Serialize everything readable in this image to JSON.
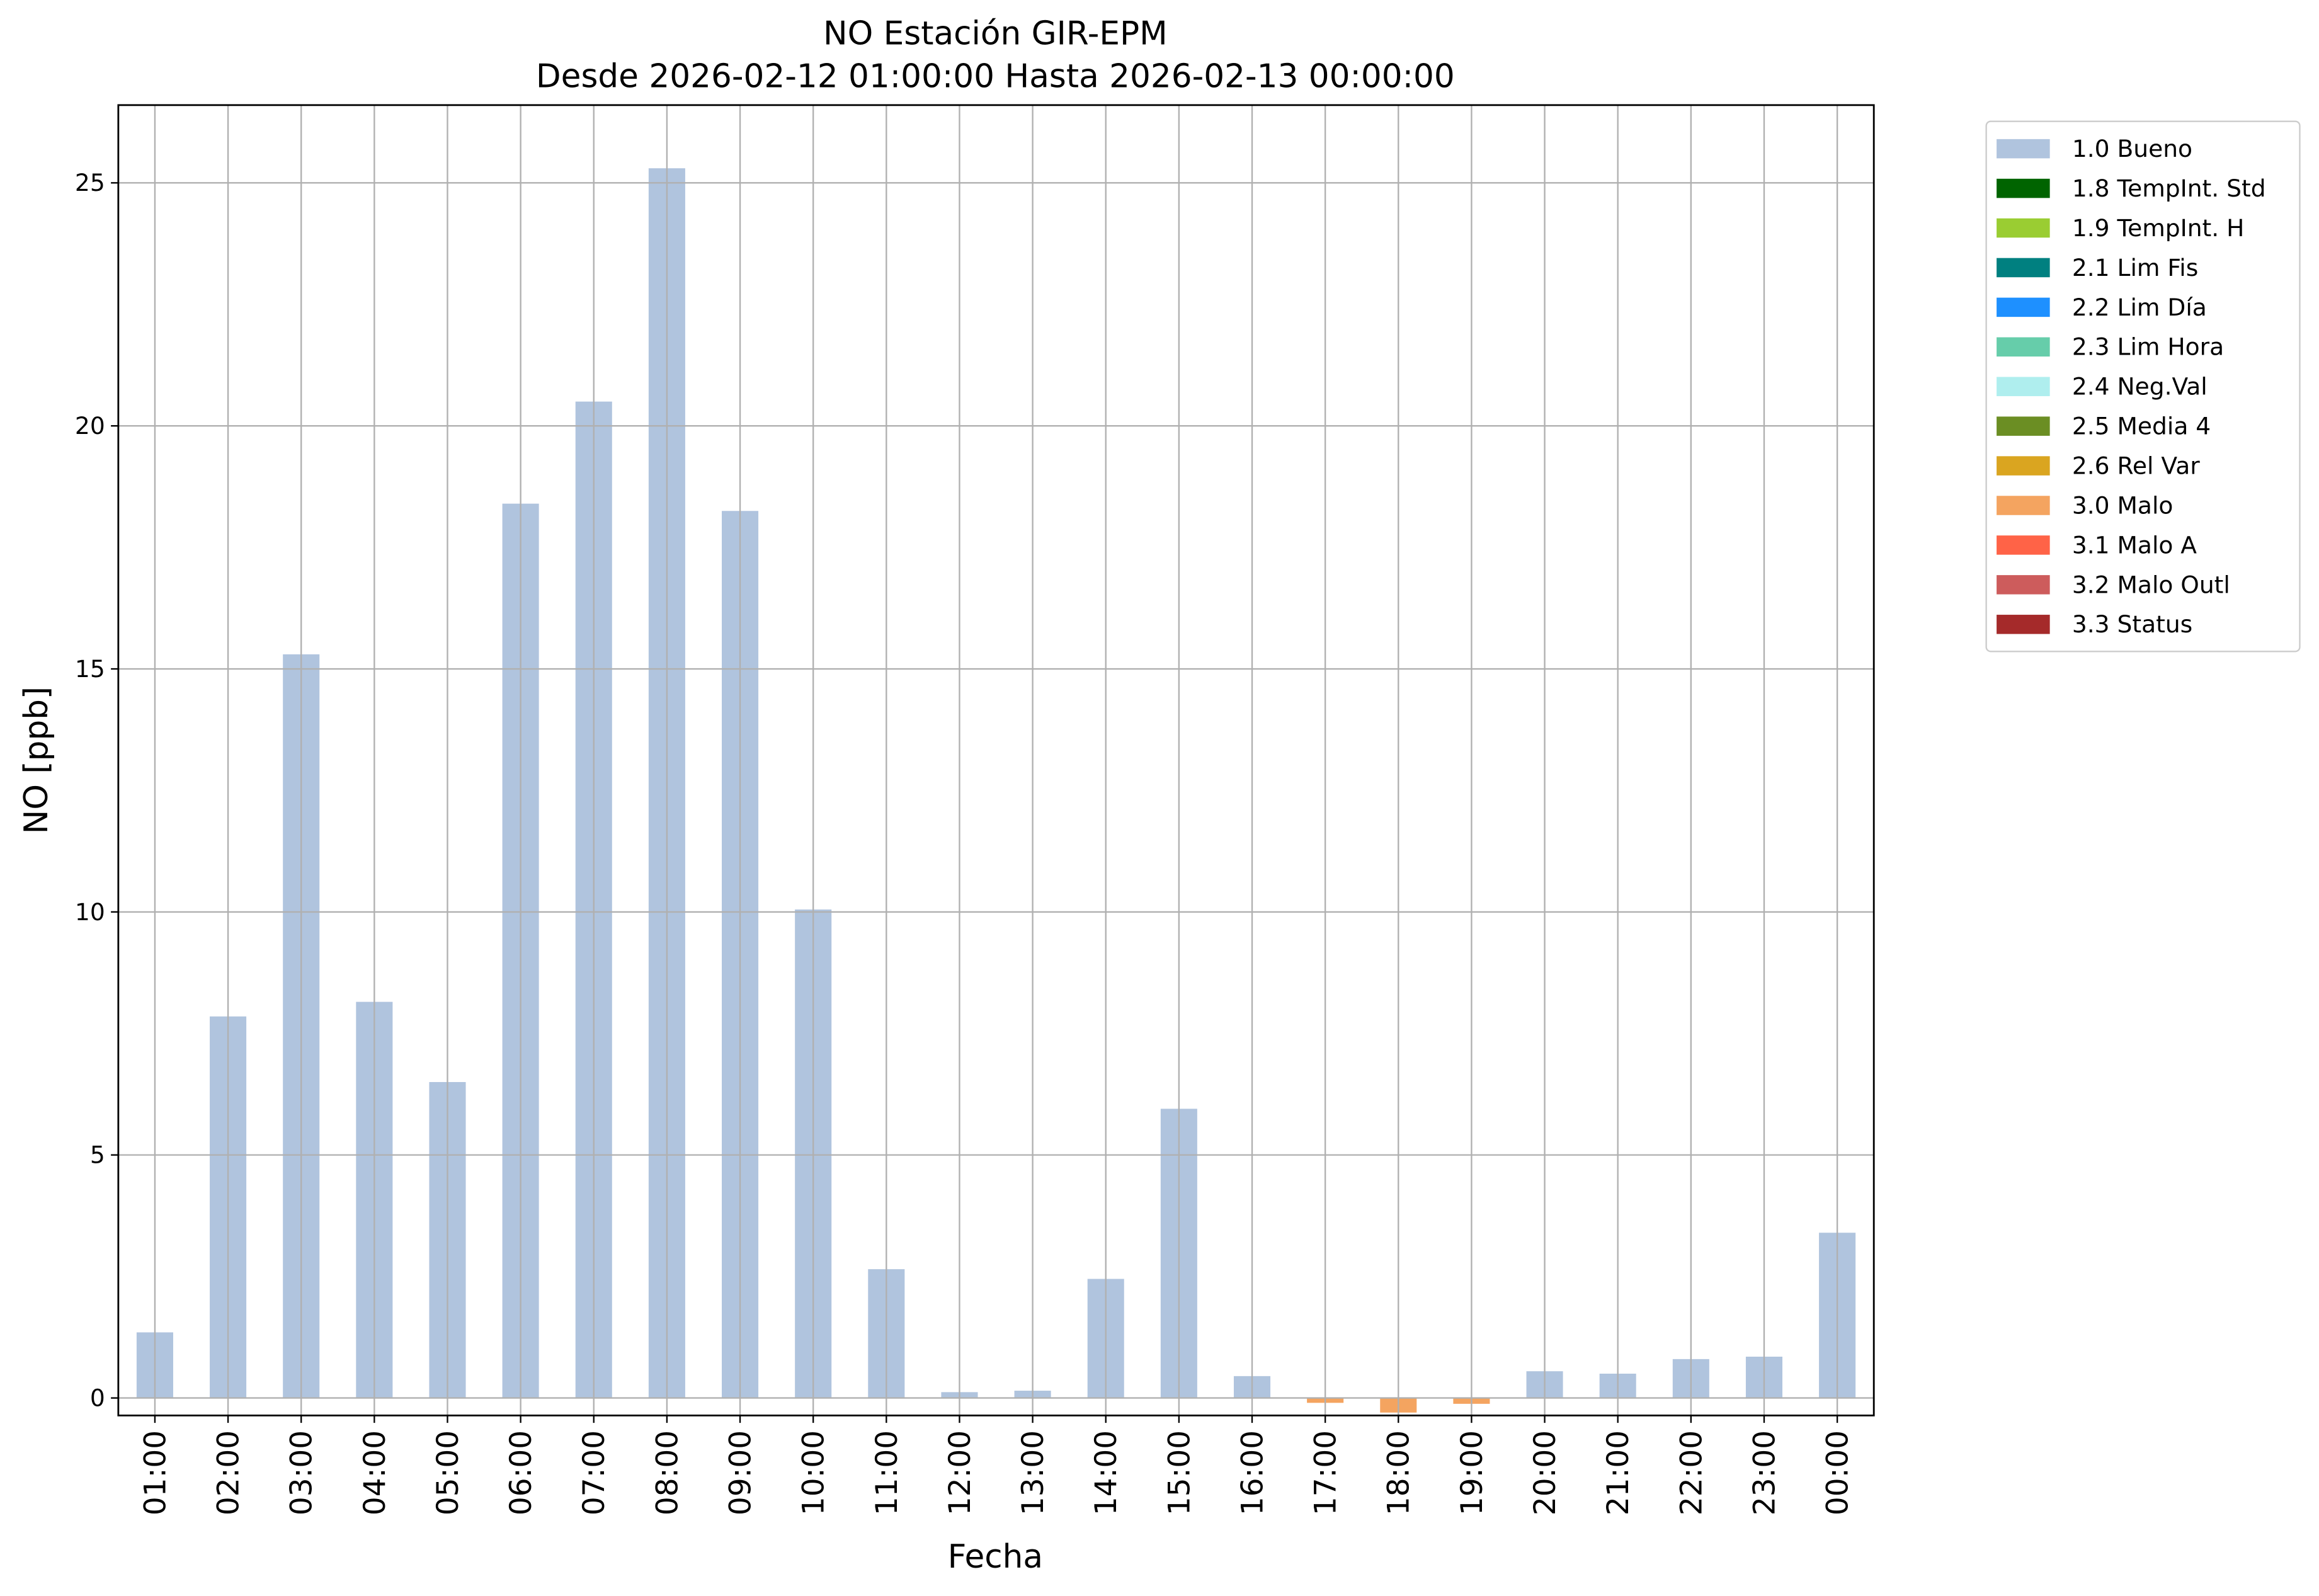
{
  "chart_data": {
    "type": "bar",
    "stacked": true,
    "title": "NO Estación GIR-EPM",
    "subtitle": "Desde 2026-02-12 01:00:00 Hasta 2026-02-13 00:00:00",
    "x_label": "Fecha",
    "y_label": "NO [ppb]",
    "categories": [
      "01:00",
      "02:00",
      "03:00",
      "04:00",
      "05:00",
      "06:00",
      "07:00",
      "08:00",
      "09:00",
      "10:00",
      "11:00",
      "12:00",
      "13:00",
      "14:00",
      "15:00",
      "16:00",
      "17:00",
      "18:00",
      "19:00",
      "20:00",
      "21:00",
      "22:00",
      "23:00",
      "00:00"
    ],
    "ylim": [
      -0.36,
      26.6
    ],
    "yticks": [
      0,
      5,
      10,
      15,
      20,
      25
    ],
    "grid": true,
    "legend": "outside-upper-right",
    "series": [
      {
        "name": "1.0 Bueno",
        "color": "#b0c4de",
        "values": [
          1.35,
          7.85,
          15.3,
          8.15,
          6.5,
          18.4,
          20.5,
          25.3,
          18.25,
          10.05,
          2.65,
          0.12,
          0.15,
          2.45,
          5.95,
          0.45,
          null,
          null,
          null,
          0.55,
          0.5,
          0.8,
          0.85,
          3.4
        ]
      },
      {
        "name": "1.8 TempInt. Std",
        "color": "#006400",
        "values": [
          null,
          null,
          null,
          null,
          null,
          null,
          null,
          null,
          null,
          null,
          null,
          null,
          null,
          null,
          null,
          null,
          null,
          null,
          null,
          null,
          null,
          null,
          null,
          null
        ]
      },
      {
        "name": "1.9 TempInt. H",
        "color": "#9acd32",
        "values": [
          null,
          null,
          null,
          null,
          null,
          null,
          null,
          null,
          null,
          null,
          null,
          null,
          null,
          null,
          null,
          null,
          null,
          null,
          null,
          null,
          null,
          null,
          null,
          null
        ]
      },
      {
        "name": "2.1 Lim Fis",
        "color": "#008080",
        "values": [
          null,
          null,
          null,
          null,
          null,
          null,
          null,
          null,
          null,
          null,
          null,
          null,
          null,
          null,
          null,
          null,
          null,
          null,
          null,
          null,
          null,
          null,
          null,
          null
        ]
      },
      {
        "name": "2.2 Lim Día",
        "color": "#1e90ff",
        "values": [
          null,
          null,
          null,
          null,
          null,
          null,
          null,
          null,
          null,
          null,
          null,
          null,
          null,
          null,
          null,
          null,
          null,
          null,
          null,
          null,
          null,
          null,
          null,
          null
        ]
      },
      {
        "name": "2.3 Lim Hora",
        "color": "#66cdaa",
        "values": [
          null,
          null,
          null,
          null,
          null,
          null,
          null,
          null,
          null,
          null,
          null,
          null,
          null,
          null,
          null,
          null,
          null,
          null,
          null,
          null,
          null,
          null,
          null,
          null
        ]
      },
      {
        "name": "2.4 Neg.Val",
        "color": "#afeeee",
        "values": [
          null,
          null,
          null,
          null,
          null,
          null,
          null,
          null,
          null,
          null,
          null,
          null,
          null,
          null,
          null,
          null,
          null,
          null,
          null,
          null,
          null,
          null,
          null,
          null
        ]
      },
      {
        "name": "2.5 Media 4",
        "color": "#6b8e23",
        "values": [
          null,
          null,
          null,
          null,
          null,
          null,
          null,
          null,
          null,
          null,
          null,
          null,
          null,
          null,
          null,
          null,
          null,
          null,
          null,
          null,
          null,
          null,
          null,
          null
        ]
      },
      {
        "name": "2.6 Rel Var",
        "color": "#daa520",
        "values": [
          null,
          null,
          null,
          null,
          null,
          null,
          null,
          null,
          null,
          null,
          null,
          null,
          null,
          null,
          null,
          null,
          null,
          null,
          null,
          null,
          null,
          null,
          null,
          null
        ]
      },
      {
        "name": "3.0 Malo",
        "color": "#f4a460",
        "values": [
          null,
          null,
          null,
          null,
          null,
          null,
          null,
          null,
          null,
          null,
          null,
          null,
          null,
          null,
          null,
          null,
          -0.1,
          -0.3,
          -0.12,
          null,
          null,
          null,
          null,
          null
        ]
      },
      {
        "name": "3.1 Malo A",
        "color": "#ff6347",
        "values": [
          null,
          null,
          null,
          null,
          null,
          null,
          null,
          null,
          null,
          null,
          null,
          null,
          null,
          null,
          null,
          null,
          null,
          null,
          null,
          null,
          null,
          null,
          null,
          null
        ]
      },
      {
        "name": "3.2 Malo Outl",
        "color": "#cd5c5c",
        "values": [
          null,
          null,
          null,
          null,
          null,
          null,
          null,
          null,
          null,
          null,
          null,
          null,
          null,
          null,
          null,
          null,
          null,
          null,
          null,
          null,
          null,
          null,
          null,
          null
        ]
      },
      {
        "name": "3.3 Status",
        "color": "#a52a2a",
        "values": [
          null,
          null,
          null,
          null,
          null,
          null,
          null,
          null,
          null,
          null,
          null,
          null,
          null,
          null,
          null,
          null,
          null,
          null,
          null,
          null,
          null,
          null,
          null,
          null
        ]
      }
    ]
  }
}
